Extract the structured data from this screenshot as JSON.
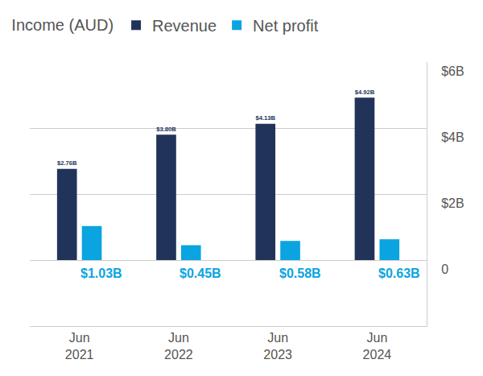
{
  "chart_data": {
    "type": "bar",
    "title": "Income (AUD)",
    "categories": [
      "Jun 2021",
      "Jun 2022",
      "Jun 2023",
      "Jun 2024"
    ],
    "series": [
      {
        "name": "Revenue",
        "color": "#22335a",
        "values": [
          2.76,
          3.8,
          4.13,
          4.92
        ],
        "value_labels": [
          "$2.76B",
          "$3.80B",
          "$4.13B",
          "$4.92B"
        ]
      },
      {
        "name": "Net profit",
        "color": "#0aa4e0",
        "values": [
          1.03,
          0.45,
          0.58,
          0.63
        ],
        "value_labels": [
          "$1.03B",
          "$0.45B",
          "$0.58B",
          "$0.63B"
        ]
      }
    ],
    "ylim": [
      -2,
      6
    ],
    "yticks": [
      {
        "value": 6,
        "label": "$6B"
      },
      {
        "value": 4,
        "label": "$4B"
      },
      {
        "value": 2,
        "label": "$2B"
      },
      0
    ],
    "grid": true,
    "legend": "top-left",
    "data_labels": true
  }
}
